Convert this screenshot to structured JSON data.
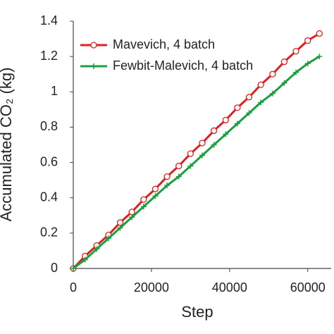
{
  "chart_data": {
    "type": "line",
    "x_label": "Step",
    "y_label": "Accumulated CO₂ (kg)",
    "x": [
      0,
      3000,
      6000,
      9000,
      12000,
      15000,
      18000,
      21000,
      24000,
      27000,
      30000,
      33000,
      36000,
      39000,
      42000,
      45000,
      48000,
      51000,
      54000,
      57000,
      60000,
      63000
    ],
    "series": [
      {
        "name": "Mavevich, 4 batch",
        "color": "#e02020",
        "marker": "circle",
        "values": [
          0,
          0.07,
          0.13,
          0.19,
          0.26,
          0.32,
          0.39,
          0.45,
          0.52,
          0.58,
          0.65,
          0.71,
          0.78,
          0.84,
          0.91,
          0.97,
          1.04,
          1.1,
          1.17,
          1.23,
          1.29,
          1.33
        ]
      },
      {
        "name": "Fewbit-Malevich, 4 batch",
        "color": "#1aa040",
        "marker": "plus",
        "values": [
          0,
          0.05,
          0.11,
          0.17,
          0.23,
          0.29,
          0.35,
          0.41,
          0.47,
          0.52,
          0.58,
          0.64,
          0.7,
          0.76,
          0.82,
          0.88,
          0.94,
          0.99,
          1.05,
          1.11,
          1.16,
          1.2
        ]
      }
    ],
    "xlim": [
      0,
      66000
    ],
    "xticks": [
      0,
      20000,
      40000,
      60000
    ],
    "ylim": [
      0,
      1.4
    ],
    "yticks": [
      0,
      0.2,
      0.4,
      0.6,
      0.8,
      1,
      1.2,
      1.4
    ],
    "legend": "upper-left"
  }
}
